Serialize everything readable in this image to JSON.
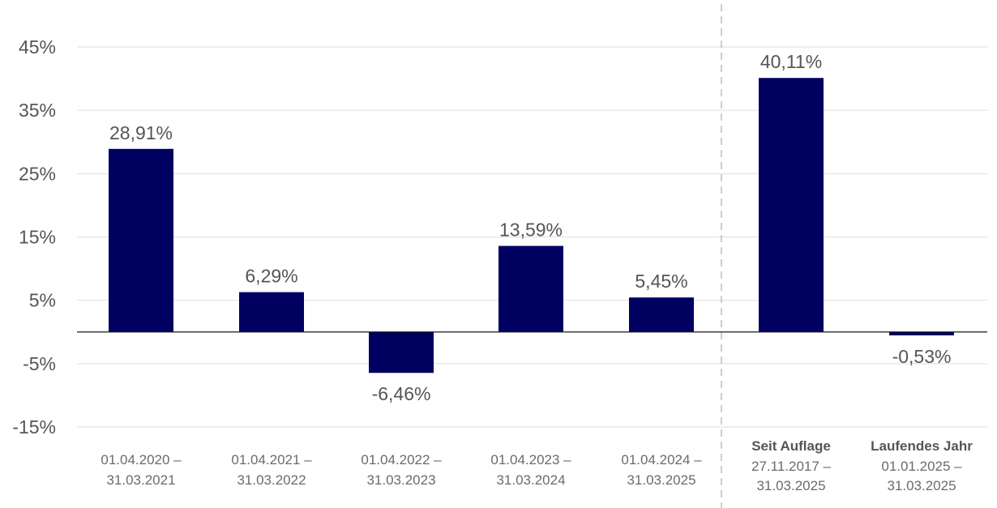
{
  "chart_data": {
    "type": "bar",
    "categories": [
      {
        "line1": "01.04.2020 –",
        "line2": "31.03.2021"
      },
      {
        "line1": "01.04.2021 –",
        "line2": "31.03.2022"
      },
      {
        "line1": "01.04.2022 –",
        "line2": "31.03.2023"
      },
      {
        "line1": "01.04.2023 –",
        "line2": "31.03.2024"
      },
      {
        "line1": "01.04.2024 –",
        "line2": "31.03.2025"
      },
      {
        "heading": "Seit Auflage",
        "line1": "27.11.2017 –",
        "line2": "31.03.2025"
      },
      {
        "heading": "Laufendes Jahr",
        "line1": "01.01.2025 –",
        "line2": "31.03.2025"
      }
    ],
    "values": [
      28.91,
      6.29,
      -6.46,
      13.59,
      5.45,
      40.11,
      -0.53
    ],
    "value_labels": [
      "28,91%",
      "6,29%",
      "-6,46%",
      "13,59%",
      "5,45%",
      "40,11%",
      "-0,53%"
    ],
    "y_ticks": [
      45,
      35,
      25,
      15,
      5,
      -5,
      -15
    ],
    "y_tick_labels": [
      "45%",
      "35%",
      "25%",
      "15%",
      "5%",
      "-5%",
      "-15%"
    ],
    "ylim": [
      -15,
      45
    ],
    "grid": true,
    "bar_color": "#000060",
    "divider_after_category": 4
  }
}
